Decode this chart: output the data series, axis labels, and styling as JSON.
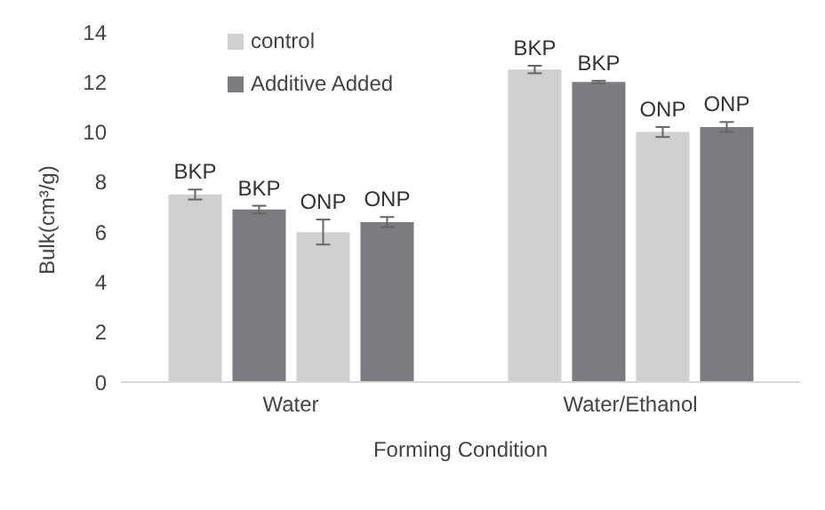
{
  "chart_data": {
    "type": "bar",
    "xlabel": "Forming Condition",
    "ylabel": "Bulk(cm³/g)",
    "categories": [
      "Water",
      "Water/Ethanol"
    ],
    "series": [
      {
        "name": "control",
        "color": "#d0d0d0",
        "values": [
          7.5,
          12.5
        ],
        "errors": [
          0.2,
          0.15
        ],
        "value_labels": [
          "BKP",
          "BKP"
        ]
      },
      {
        "name": "Additive Added",
        "color": "#7b7b80",
        "values": [
          6.9,
          12.0
        ],
        "errors": [
          0.15,
          0.05
        ],
        "value_labels": [
          "BKP",
          "BKP"
        ]
      },
      {
        "color": "#d0d0d0",
        "values": [
          6.0,
          10.0
        ],
        "errors": [
          0.5,
          0.2
        ],
        "value_labels": [
          "ONP",
          "ONP"
        ]
      },
      {
        "color": "#7b7b80",
        "values": [
          6.4,
          10.2
        ],
        "errors": [
          0.2,
          0.2
        ],
        "value_labels": [
          "ONP",
          "ONP"
        ]
      }
    ],
    "ylim": [
      0,
      14
    ],
    "yticks": [
      0,
      2,
      4,
      6,
      8,
      10,
      12,
      14
    ],
    "grid": false,
    "legend": "top left"
  }
}
